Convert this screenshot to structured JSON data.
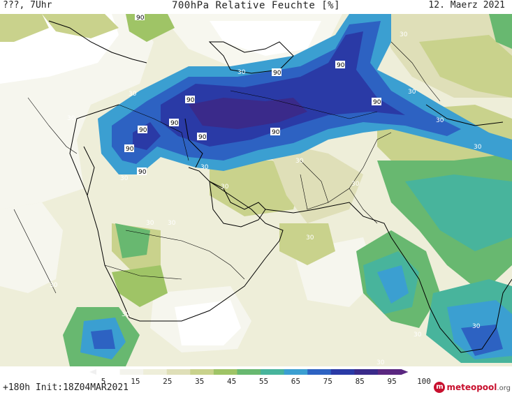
{
  "header": {
    "left": "???, 7Uhr",
    "title": "700hPa Relative Feuchte [%]",
    "date": "12. Maerz 2021"
  },
  "footer": {
    "run_info": "+180h  Init:18Z04MAR2021",
    "logo_brand": "meteopool",
    "logo_tld": ".org"
  },
  "colorbar": {
    "ticks": [
      "5",
      "15",
      "25",
      "35",
      "45",
      "55",
      "65",
      "75",
      "85",
      "95",
      "100"
    ],
    "colors": [
      "#ffffff",
      "#f3f3ec",
      "#eeeed9",
      "#dfdfb8",
      "#c9d28c",
      "#9fc466",
      "#68b870",
      "#48b49c",
      "#3b9fd1",
      "#2d62c2",
      "#2a3aa6",
      "#3a2a8a",
      "#5a2780"
    ]
  },
  "map": {
    "variable": "relative humidity",
    "level": "700hPa",
    "contour_labels": [
      "90",
      "90",
      "90",
      "90",
      "90",
      "90",
      "90",
      "90",
      "90",
      "90",
      "90",
      "30",
      "30",
      "30",
      "30",
      "30",
      "30",
      "30",
      "30",
      "30",
      "30",
      "30",
      "30",
      "30",
      "30",
      "30",
      "30",
      "30",
      "30",
      "30",
      "30",
      "30"
    ]
  }
}
